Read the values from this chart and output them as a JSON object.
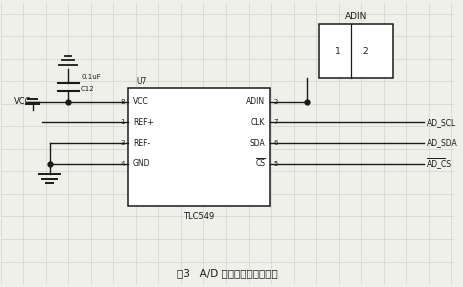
{
  "title": "图3   A/D 转换模块电路原理图",
  "bg_color": "#f0f0eb",
  "grid_color": "#cccccc",
  "line_color": "#1a1a1a",
  "box_color": "#ffffff",
  "ic_label": "TLC549",
  "ic_u_label": "U7",
  "connector_label": "ADIN",
  "figsize": [
    4.63,
    2.87
  ],
  "dpi": 100,
  "xlim": [
    0,
    9.26
  ],
  "ylim": [
    0,
    5.74
  ],
  "grid_step": 0.46
}
